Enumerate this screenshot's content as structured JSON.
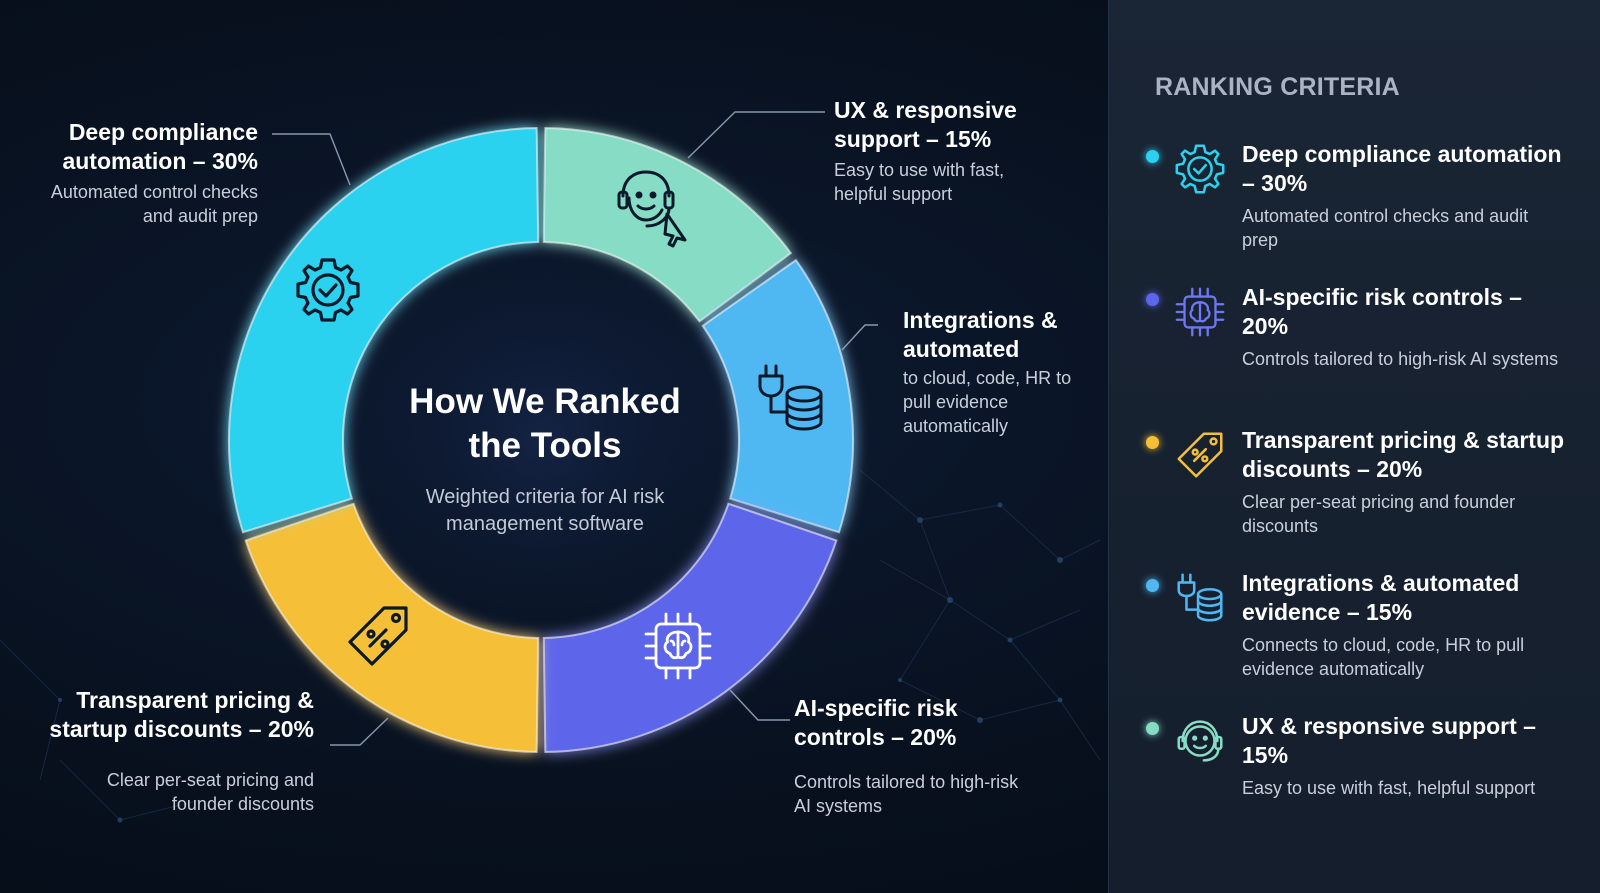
{
  "chart_data": {
    "type": "pie",
    "title": "How We Ranked the Tools",
    "subtitle": "Weighted criteria for AI risk management software",
    "slices": [
      {
        "label": "Deep compliance automation – 30%",
        "value": 30,
        "color": "#2bd2ef",
        "icon": "gear-check-icon",
        "description": "Automated control checks and audit prep"
      },
      {
        "label": "UX & responsive support – 15%",
        "value": 15,
        "color": "#86dcc4",
        "icon": "headset-cursor-icon",
        "description": "Easy to use with fast, helpful support"
      },
      {
        "label": "Integrations & automated",
        "value": 15,
        "color": "#4fb8f3",
        "icon": "plug-database-icon",
        "description": "to cloud, code, HR to pull evidence automatically"
      },
      {
        "label": "AI-specific risk controls – 20%",
        "value": 20,
        "color": "#5d66ea",
        "icon": "ai-chip-brain-icon",
        "description": "Controls tailored to high-risk AI systems"
      },
      {
        "label": "Transparent pricing & startup discounts – 20%",
        "value": 20,
        "color": "#f5bf38",
        "icon": "price-tag-percent-icon",
        "description": "Clear per-seat pricing and founder discounts"
      }
    ]
  },
  "panel": {
    "title": "RANKING CRITERIA",
    "items": [
      {
        "title": "Deep compliance automation – 30%",
        "desc": "Automated control checks and audit prep",
        "dot": "#2bd2ef",
        "icon": "gear-check-icon"
      },
      {
        "title": "AI-specific risk controls – 20%",
        "desc": "Controls tailored to high-risk AI systems",
        "dot": "#5d66ea",
        "icon": "ai-chip-brain-icon"
      },
      {
        "title": "Transparent pricing & startup discounts – 20%",
        "desc": "Clear per-seat pricing and founder discounts",
        "dot": "#f5bf38",
        "icon": "price-tag-percent-icon"
      },
      {
        "title": "Integrations & automated evidence – 15%",
        "desc": "Connects to cloud, code, HR to pull evidence automatically",
        "dot": "#4fb8f3",
        "icon": "plug-database-icon"
      },
      {
        "title": "UX & responsive support – 15%",
        "desc": "Easy to use with fast, helpful support",
        "dot": "#86dcc4",
        "icon": "headset-icon"
      }
    ]
  }
}
